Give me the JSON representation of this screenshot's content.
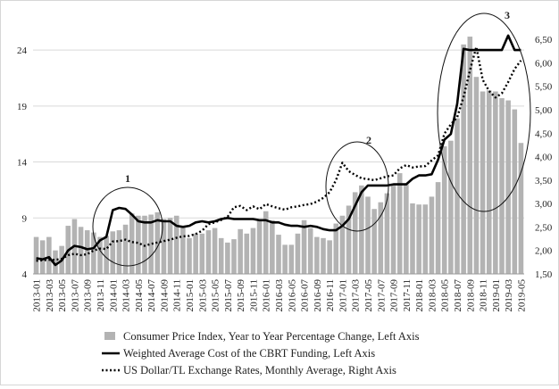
{
  "chart_data": {
    "type": "bar+line",
    "title": "",
    "left_axis": {
      "min": 4,
      "max": 26,
      "ticks": [
        4,
        9,
        14,
        19,
        24
      ]
    },
    "right_axis": {
      "min": 1.5,
      "max": 6.75,
      "ticks": [
        "1,50",
        "2,00",
        "2,50",
        "3,00",
        "3,50",
        "4,00",
        "4,50",
        "5,00",
        "5,50",
        "6,00",
        "6,50"
      ],
      "tick_values": [
        1.5,
        2.0,
        2.5,
        3.0,
        3.5,
        4.0,
        4.5,
        5.0,
        5.5,
        6.0,
        6.5
      ]
    },
    "x_start": "2013-01",
    "x_tick_labels": [
      "2013-01",
      "2013-03",
      "2013-05",
      "2013-07",
      "2013-09",
      "2013-11",
      "2014-01",
      "2014-03",
      "2014-05",
      "2014-07",
      "2014-09",
      "2014-11",
      "2015-01",
      "2015-03",
      "2015-05",
      "2015-07",
      "2015-09",
      "2015-11",
      "2016-01",
      "2016-03",
      "2016-05",
      "2016-07",
      "2016-09",
      "2016-11",
      "2017-01",
      "2017-03",
      "2017-05",
      "2017-07",
      "2017-09",
      "2017-11",
      "2018-01",
      "2018-03",
      "2018-05",
      "2018-07",
      "2018-09",
      "2018-11",
      "2019-01",
      "2019-03",
      "2019-05"
    ],
    "series": [
      {
        "name": "Consumer Price Index, Year to Year Percentage Change, Left Axis",
        "kind": "bar",
        "axis": "left",
        "color": "#b3b3b3",
        "values": [
          7.3,
          7.0,
          7.3,
          6.1,
          6.5,
          8.3,
          8.9,
          8.2,
          7.9,
          7.7,
          7.3,
          7.4,
          7.8,
          7.9,
          8.4,
          9.4,
          9.2,
          9.2,
          9.3,
          9.5,
          8.9,
          9.0,
          9.2,
          8.2,
          7.2,
          7.6,
          7.6,
          7.9,
          8.1,
          7.2,
          6.8,
          7.1,
          8.0,
          7.6,
          8.1,
          8.8,
          9.6,
          8.8,
          7.5,
          6.6,
          6.6,
          7.6,
          8.8,
          8.1,
          7.3,
          7.2,
          7.0,
          8.5,
          9.2,
          10.1,
          11.3,
          11.9,
          10.9,
          9.8,
          10.4,
          11.2,
          11.9,
          13.0,
          12.0,
          10.3,
          10.2,
          10.2,
          10.9,
          12.2,
          15.4,
          15.9,
          17.9,
          24.5,
          25.2,
          21.6,
          20.3,
          20.4,
          20.3,
          19.7,
          19.5,
          18.7,
          15.7
        ]
      },
      {
        "name": "Weighted Average Cost of the CBRT Funding, Left Axis",
        "kind": "line",
        "axis": "left",
        "color": "#000000",
        "style": "solid",
        "values": [
          5.4,
          5.3,
          5.5,
          4.8,
          5.2,
          6.1,
          6.5,
          6.4,
          6.2,
          6.3,
          7.0,
          7.3,
          9.7,
          9.9,
          9.8,
          9.3,
          8.7,
          8.6,
          8.6,
          8.8,
          8.7,
          8.7,
          8.3,
          8.2,
          8.3,
          8.6,
          8.7,
          8.6,
          8.7,
          8.9,
          9.0,
          8.9,
          8.9,
          8.9,
          8.9,
          8.8,
          8.8,
          8.6,
          8.6,
          8.4,
          8.3,
          8.3,
          8.2,
          8.3,
          8.2,
          8.0,
          7.9,
          7.9,
          8.3,
          8.9,
          10.1,
          11.3,
          11.9,
          11.9,
          11.9,
          11.9,
          12.0,
          12.0,
          12.0,
          12.5,
          12.8,
          12.8,
          12.9,
          14.2,
          16.0,
          16.5,
          19.2,
          24.1,
          24.0,
          24.0,
          24.0,
          24.0,
          24.0,
          24.0,
          25.3,
          24.0,
          24.0
        ]
      },
      {
        "name": "US Dollar/TL Exchange Rates, Monthly Average, Right Axis",
        "kind": "line",
        "axis": "right",
        "color": "#000000",
        "style": "dotted",
        "values": [
          1.78,
          1.79,
          1.8,
          1.8,
          1.82,
          1.9,
          1.93,
          1.9,
          1.92,
          2.0,
          2.04,
          2.03,
          2.19,
          2.2,
          2.23,
          2.18,
          2.16,
          2.1,
          2.14,
          2.17,
          2.2,
          2.23,
          2.27,
          2.3,
          2.31,
          2.35,
          2.42,
          2.56,
          2.6,
          2.65,
          2.72,
          2.92,
          2.95,
          2.86,
          2.94,
          2.88,
          2.99,
          2.94,
          2.9,
          2.87,
          2.92,
          2.94,
          2.97,
          2.99,
          3.04,
          3.12,
          3.24,
          3.5,
          3.87,
          3.69,
          3.61,
          3.54,
          3.52,
          3.5,
          3.54,
          3.58,
          3.6,
          3.75,
          3.82,
          3.77,
          3.79,
          3.8,
          3.92,
          4.03,
          4.49,
          4.69,
          4.84,
          5.27,
          5.84,
          6.34,
          5.64,
          5.4,
          5.26,
          5.35,
          5.59,
          5.87,
          6.05
        ]
      }
    ],
    "annotations": [
      {
        "label": "1"
      },
      {
        "label": "2"
      },
      {
        "label": "3"
      }
    ],
    "legend_position": "bottom"
  }
}
